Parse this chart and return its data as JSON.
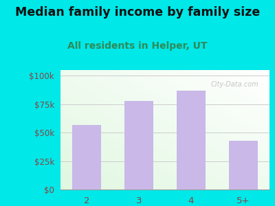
{
  "categories": [
    "2",
    "3",
    "4",
    "5+"
  ],
  "values": [
    57000,
    78000,
    87000,
    43000
  ],
  "bar_color": "#c9b8e8",
  "title": "Median family income by family size",
  "subtitle": "All residents in Helper, UT",
  "title_fontsize": 12.5,
  "subtitle_fontsize": 10,
  "subtitle_color": "#2e8b57",
  "title_color": "#111111",
  "ytick_labels": [
    "$0",
    "$25k",
    "$50k",
    "$75k",
    "$100k"
  ],
  "ytick_values": [
    0,
    25000,
    50000,
    75000,
    100000
  ],
  "ylim": [
    0,
    105000
  ],
  "background_outer": "#00e8e8",
  "tick_color": "#884444",
  "grid_color": "#cccccc",
  "watermark": "City-Data.com"
}
